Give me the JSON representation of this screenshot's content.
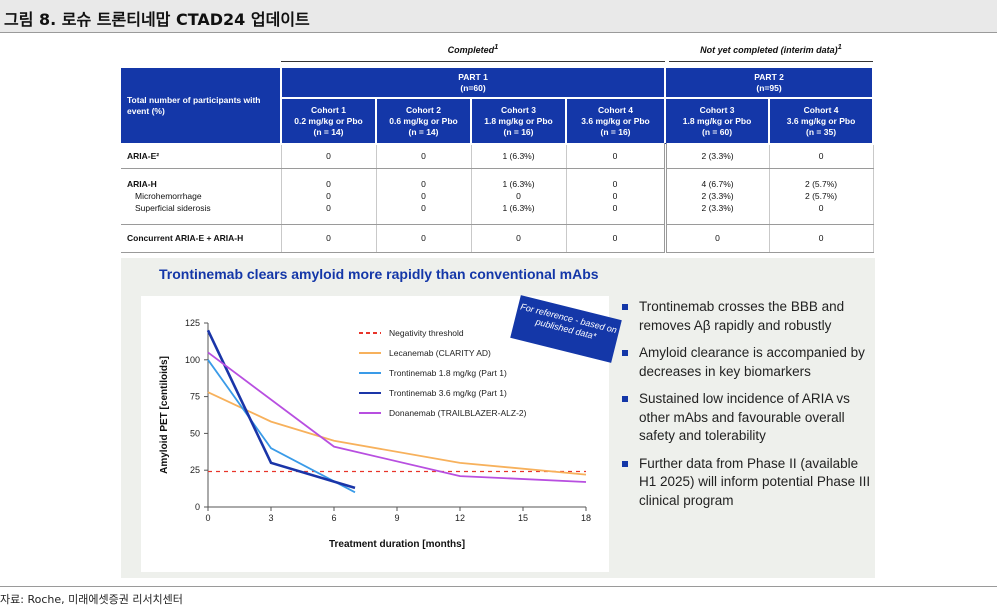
{
  "header": {
    "title": "그림 8. 로슈 트론티네맙 CTAD24 업데이트"
  },
  "table": {
    "completed_label": "Completed",
    "completed_mark": "1",
    "interim_label": "Not yet completed (interim data)",
    "interim_mark": "1",
    "part1": {
      "title": "PART 1",
      "n": "(n=60)"
    },
    "part2": {
      "title": "PART 2",
      "n": "(n=95)"
    },
    "row_header": "Total number of participants with event (%)",
    "cohorts": [
      {
        "name": "Cohort 1",
        "dose": "0.2 mg/kg or Pbo",
        "n": "(n = 14)"
      },
      {
        "name": "Cohort 2",
        "dose": "0.6 mg/kg or Pbo",
        "n": "(n = 14)"
      },
      {
        "name": "Cohort 3",
        "dose": "1.8 mg/kg or Pbo",
        "n": "(n = 16)"
      },
      {
        "name": "Cohort 4",
        "dose": "3.6 mg/kg or Pbo",
        "n": "(n = 16)"
      },
      {
        "name": "Cohort 3",
        "dose": "1.8 mg/kg or Pbo",
        "n": "(n = 60)"
      },
      {
        "name": "Cohort 4",
        "dose": "3.6 mg/kg or Pbo",
        "n": "(n = 35)"
      }
    ],
    "rows": [
      {
        "label": "ARIA-E²",
        "values": [
          "0",
          "0",
          "1 (6.3%)",
          "0",
          "2 (3.3%)",
          "0"
        ]
      },
      {
        "label": "ARIA-H",
        "values": [
          "0",
          "0",
          "1 (6.3%)",
          "0",
          "4 (6.7%)",
          "2 (5.7%)"
        ]
      },
      {
        "label": "Microhemorrhage",
        "values": [
          "0",
          "0",
          "0",
          "0",
          "2 (3.3%)",
          "2 (5.7%)"
        ]
      },
      {
        "label": "Superficial siderosis",
        "values": [
          "0",
          "0",
          "1 (6.3%)",
          "0",
          "2 (3.3%)",
          "0"
        ]
      },
      {
        "label": "Concurrent ARIA-E + ARIA-H",
        "values": [
          "0",
          "0",
          "0",
          "0",
          "0",
          "0"
        ]
      }
    ]
  },
  "panel": {
    "title": "Trontinemab clears amyloid more rapidly than conventional mAbs",
    "badge": "For reference - based on published data*",
    "bullets": [
      "Trontinemab crosses the BBB and removes Aβ rapidly and robustly",
      "Amyloid clearance is accompanied by decreases in key biomarkers",
      "Sustained low incidence of ARIA vs other mAbs and favourable overall safety and tolerability",
      "Further data from Phase II (available H1 2025) will inform potential Phase III clinical program"
    ]
  },
  "chart_data": {
    "type": "line",
    "title": "",
    "xlabel": "Treatment duration [months]",
    "ylabel": "Amyloid PET [centiloids]",
    "xlim": [
      0,
      18
    ],
    "ylim": [
      0,
      125
    ],
    "xticks": [
      0,
      3,
      6,
      9,
      12,
      15,
      18
    ],
    "yticks": [
      0,
      25,
      50,
      75,
      100,
      125
    ],
    "grid": false,
    "legend_position": "top-right",
    "series": [
      {
        "name": "Negativity threshold",
        "color": "#e8352b",
        "dashed": true,
        "x": [
          0,
          18
        ],
        "y": [
          24.1,
          24.1
        ]
      },
      {
        "name": "Lecanemab (CLARITY AD)",
        "color": "#f7b15c",
        "dashed": false,
        "x": [
          0,
          3,
          6,
          12,
          18
        ],
        "y": [
          78,
          58,
          45,
          30,
          22
        ]
      },
      {
        "name": "Trontinemab 1.8 mg/kg (Part 1)",
        "color": "#3a9be8",
        "dashed": false,
        "x": [
          0,
          3,
          7
        ],
        "y": [
          100,
          40,
          10
        ]
      },
      {
        "name": "Trontinemab 3.6 mg/kg (Part 1)",
        "color": "#1a35a8",
        "dashed": false,
        "x": [
          0,
          3,
          7
        ],
        "y": [
          120,
          30,
          13
        ]
      },
      {
        "name": "Donanemab (TRAILBLAZER-ALZ-2)",
        "color": "#b84fe0",
        "dashed": false,
        "x": [
          0,
          6,
          12,
          18
        ],
        "y": [
          105,
          41,
          21,
          17
        ]
      }
    ]
  },
  "source": "자료: Roche, 미래에셋증권 리서치센터"
}
